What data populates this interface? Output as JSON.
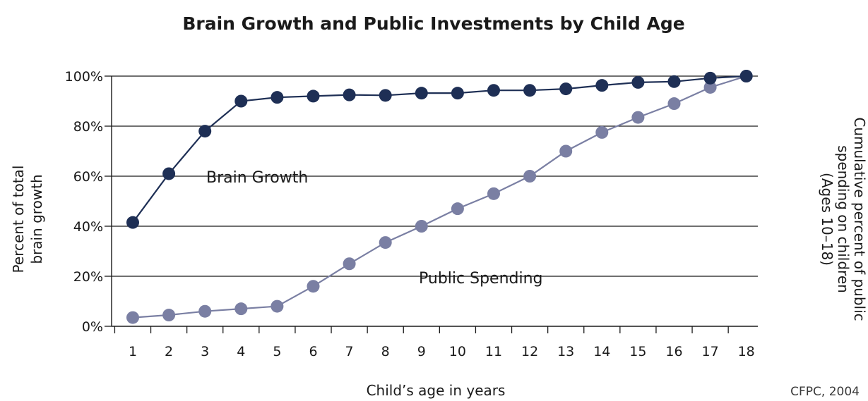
{
  "chart_data": {
    "type": "line",
    "title": "Brain Growth and Public Investments by Child Age",
    "xlabel": "Child’s age in years",
    "ylabel": [
      "Percent of total",
      "brain growth"
    ],
    "y2label": [
      "Cumulative percent of public",
      "spending on children",
      "(Ages 10–18)"
    ],
    "source": "CFPC, 2004",
    "x": [
      1,
      2,
      3,
      4,
      5,
      6,
      7,
      8,
      9,
      10,
      11,
      12,
      13,
      14,
      15,
      16,
      17,
      18
    ],
    "x_tick_labels": [
      "1",
      "2",
      "3",
      "4",
      "5",
      "6",
      "7",
      "8",
      "9",
      "10",
      "11",
      "12",
      "13",
      "14",
      "15",
      "16",
      "17",
      "18"
    ],
    "y_tick_labels": [
      "0%",
      "20%",
      "40%",
      "60%",
      "80%",
      "100%"
    ],
    "ylim": [
      0,
      100
    ],
    "grid": true,
    "series": [
      {
        "name": "Brain Growth",
        "color": "#1e2f55",
        "values": [
          41.5,
          61,
          78,
          90,
          91.5,
          92,
          92.5,
          92.3,
          93.2,
          93.2,
          94.3,
          94.3,
          94.9,
          96.3,
          97.5,
          97.8,
          99.2,
          100
        ]
      },
      {
        "name": "Public Spending",
        "color": "#7a7fa3",
        "values": [
          3.5,
          4.5,
          6,
          7,
          8,
          16,
          25,
          33.5,
          40,
          47,
          53,
          60,
          70,
          77.5,
          83.5,
          89,
          95.5,
          100
        ]
      }
    ]
  }
}
